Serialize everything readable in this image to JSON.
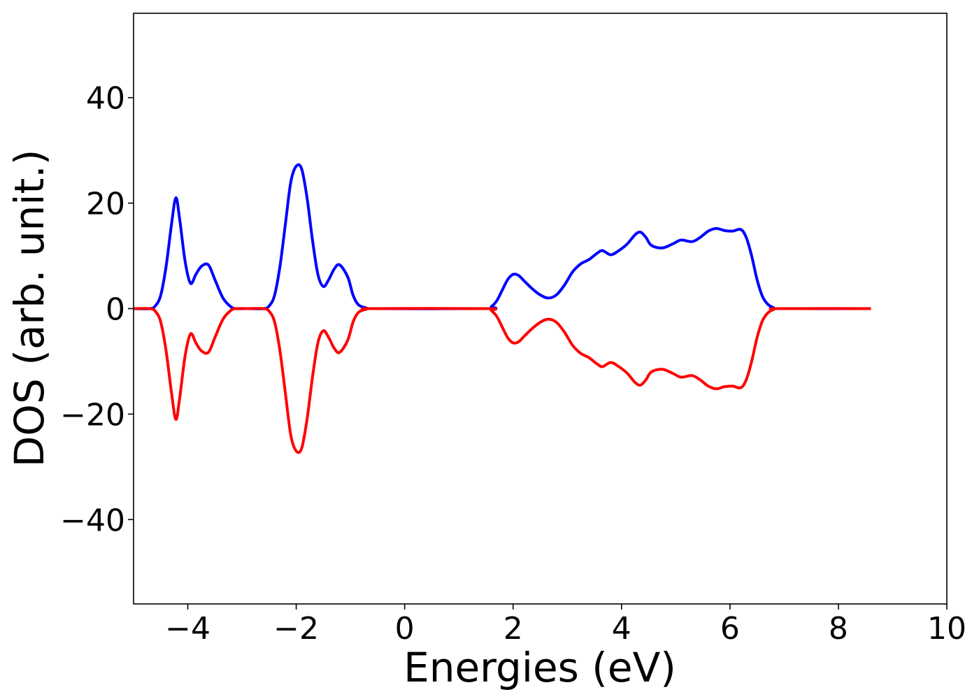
{
  "chart_data": {
    "type": "line",
    "title": "",
    "xlabel": "Energies (eV)",
    "ylabel": "DOS (arb. unit.)",
    "xlim": [
      -5,
      10
    ],
    "ylim": [
      -56,
      56
    ],
    "xticks": [
      -4,
      -2,
      0,
      2,
      4,
      6,
      8,
      10
    ],
    "xtick_labels": [
      "−4",
      "−2",
      "0",
      "2",
      "4",
      "6",
      "8",
      "10"
    ],
    "yticks": [
      -40,
      -20,
      0,
      20,
      40
    ],
    "ytick_labels": [
      "−40",
      "−20",
      "0",
      "20",
      "40"
    ],
    "grid": false,
    "legend": "none",
    "series": [
      {
        "color": "#0000ff",
        "x": [
          -5.0,
          -4.7,
          -4.6,
          -4.5,
          -4.4,
          -4.3,
          -4.22,
          -4.15,
          -4.05,
          -3.95,
          -3.85,
          -3.75,
          -3.62,
          -3.5,
          -3.35,
          -3.2,
          -3.1,
          -2.9,
          -2.6,
          -2.5,
          -2.4,
          -2.3,
          -2.2,
          -2.1,
          -2.0,
          -1.9,
          -1.8,
          -1.7,
          -1.6,
          -1.5,
          -1.4,
          -1.3,
          -1.2,
          -1.05,
          -0.95,
          -0.85,
          -0.7,
          -0.6,
          1.5,
          1.6,
          1.7,
          1.8,
          1.9,
          2.0,
          2.1,
          2.2,
          2.35,
          2.5,
          2.65,
          2.8,
          2.95,
          3.1,
          3.25,
          3.4,
          3.55,
          3.65,
          3.8,
          3.95,
          4.1,
          4.25,
          4.35,
          4.45,
          4.55,
          4.75,
          4.95,
          5.1,
          5.3,
          5.45,
          5.6,
          5.75,
          5.9,
          6.05,
          6.2,
          6.3,
          6.4,
          6.5,
          6.6,
          6.7,
          6.8,
          6.9,
          8.6
        ],
        "y": [
          0,
          0,
          0.5,
          2.5,
          8,
          16,
          21,
          17,
          9,
          4.8,
          6.5,
          8,
          8.3,
          5.5,
          2,
          0.3,
          0,
          0,
          0,
          0.5,
          2.5,
          8,
          16,
          24,
          27,
          26.5,
          21,
          13,
          6.5,
          4.2,
          5.5,
          7.5,
          8.3,
          6,
          2.5,
          0.7,
          0.1,
          0,
          0,
          0.4,
          1.5,
          3.5,
          5.5,
          6.5,
          6.3,
          5.3,
          3.8,
          2.6,
          2,
          2.6,
          4.5,
          7,
          8.5,
          9.3,
          10.5,
          11,
          10.2,
          11,
          12.2,
          14,
          14.5,
          13.5,
          12,
          11.5,
          12.3,
          13,
          12.7,
          13.5,
          14.7,
          15.2,
          14.8,
          14.7,
          15,
          13.5,
          10,
          5.5,
          2.3,
          0.8,
          0.2,
          0,
          0
        ]
      },
      {
        "color": "#ff0000",
        "x": [
          -5.0,
          -4.7,
          -4.6,
          -4.5,
          -4.4,
          -4.3,
          -4.22,
          -4.15,
          -4.05,
          -3.95,
          -3.85,
          -3.75,
          -3.62,
          -3.5,
          -3.35,
          -3.2,
          -3.1,
          -2.9,
          -2.6,
          -2.5,
          -2.4,
          -2.3,
          -2.2,
          -2.1,
          -2.0,
          -1.9,
          -1.8,
          -1.7,
          -1.6,
          -1.5,
          -1.4,
          -1.3,
          -1.2,
          -1.05,
          -0.95,
          -0.85,
          -0.7,
          -0.6,
          1.5,
          1.6,
          1.7,
          1.8,
          1.9,
          2.0,
          2.1,
          2.2,
          2.35,
          2.5,
          2.65,
          2.8,
          2.95,
          3.1,
          3.25,
          3.4,
          3.55,
          3.65,
          3.8,
          3.95,
          4.1,
          4.25,
          4.35,
          4.45,
          4.55,
          4.75,
          4.95,
          5.1,
          5.3,
          5.45,
          5.6,
          5.75,
          5.9,
          6.05,
          6.2,
          6.3,
          6.4,
          6.5,
          6.6,
          6.7,
          6.8,
          6.9,
          8.6
        ],
        "y": [
          0,
          0,
          -0.5,
          -2.5,
          -8,
          -16,
          -21,
          -17,
          -9,
          -4.8,
          -6.5,
          -8,
          -8.3,
          -5.5,
          -2,
          -0.3,
          0,
          0,
          0,
          -0.5,
          -2.5,
          -8,
          -16,
          -24,
          -27,
          -26.5,
          -21,
          -13,
          -6.5,
          -4.2,
          -5.5,
          -7.5,
          -8.3,
          -6,
          -2.5,
          -0.7,
          -0.1,
          0,
          0,
          -0.4,
          -1.5,
          -3.5,
          -5.5,
          -6.5,
          -6.3,
          -5.3,
          -3.8,
          -2.6,
          -2,
          -2.6,
          -4.5,
          -7,
          -8.5,
          -9.3,
          -10.5,
          -11,
          -10.2,
          -11,
          -12.2,
          -14,
          -14.5,
          -13.5,
          -12,
          -11.5,
          -12.3,
          -13,
          -12.7,
          -13.5,
          -14.7,
          -15.2,
          -14.8,
          -14.7,
          -15,
          -13.5,
          -10,
          -5.5,
          -2.3,
          -0.8,
          -0.2,
          0,
          0
        ]
      }
    ]
  }
}
